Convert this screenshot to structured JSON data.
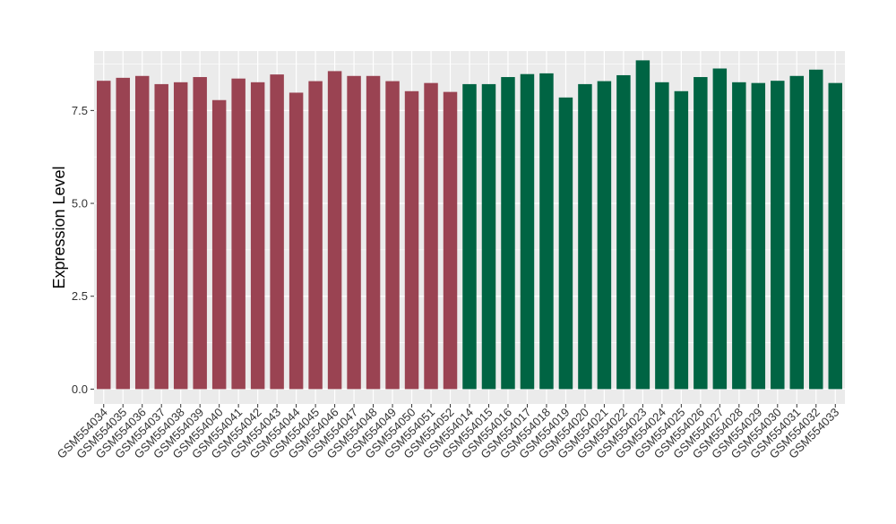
{
  "chart_data": {
    "type": "bar",
    "title": "",
    "xlabel": "",
    "ylabel": "Expression Level",
    "ylim": [
      -0.4,
      9.1
    ],
    "yticks": [
      0.0,
      2.5,
      5.0,
      7.5
    ],
    "ytick_labels": [
      "0.0",
      "2.5",
      "5.0",
      "7.5"
    ],
    "grid": true,
    "legend": "none",
    "panel_background": "#ebebeb",
    "grid_color": "#ffffff",
    "categories": [
      "GSM554034",
      "GSM554035",
      "GSM554036",
      "GSM554037",
      "GSM554038",
      "GSM554039",
      "GSM554040",
      "GSM554041",
      "GSM554042",
      "GSM554043",
      "GSM554044",
      "GSM554045",
      "GSM554046",
      "GSM554047",
      "GSM554048",
      "GSM554049",
      "GSM554050",
      "GSM554051",
      "GSM554052",
      "GSM554014",
      "GSM554015",
      "GSM554016",
      "GSM554017",
      "GSM554018",
      "GSM554019",
      "GSM554020",
      "GSM554021",
      "GSM554022",
      "GSM554023",
      "GSM554024",
      "GSM554025",
      "GSM554026",
      "GSM554027",
      "GSM554028",
      "GSM554029",
      "GSM554030",
      "GSM554031",
      "GSM554032",
      "GSM554033"
    ],
    "values": [
      8.3,
      8.38,
      8.43,
      8.21,
      8.26,
      8.4,
      7.78,
      8.36,
      8.26,
      8.47,
      7.98,
      8.29,
      8.56,
      8.43,
      8.43,
      8.29,
      8.02,
      8.24,
      8.0,
      8.21,
      8.21,
      8.4,
      8.48,
      8.5,
      7.85,
      8.21,
      8.29,
      8.45,
      8.85,
      8.26,
      8.02,
      8.4,
      8.63,
      8.26,
      8.24,
      8.3,
      8.43,
      8.6,
      8.24
    ],
    "bar_colors": [
      "#9a4352",
      "#9a4352",
      "#9a4352",
      "#9a4352",
      "#9a4352",
      "#9a4352",
      "#9a4352",
      "#9a4352",
      "#9a4352",
      "#9a4352",
      "#9a4352",
      "#9a4352",
      "#9a4352",
      "#9a4352",
      "#9a4352",
      "#9a4352",
      "#9a4352",
      "#9a4352",
      "#9a4352",
      "#006443",
      "#006443",
      "#006443",
      "#006443",
      "#006443",
      "#006443",
      "#006443",
      "#006443",
      "#006443",
      "#006443",
      "#006443",
      "#006443",
      "#006443",
      "#006443",
      "#006443",
      "#006443",
      "#006443",
      "#006443",
      "#006443",
      "#006443"
    ]
  }
}
